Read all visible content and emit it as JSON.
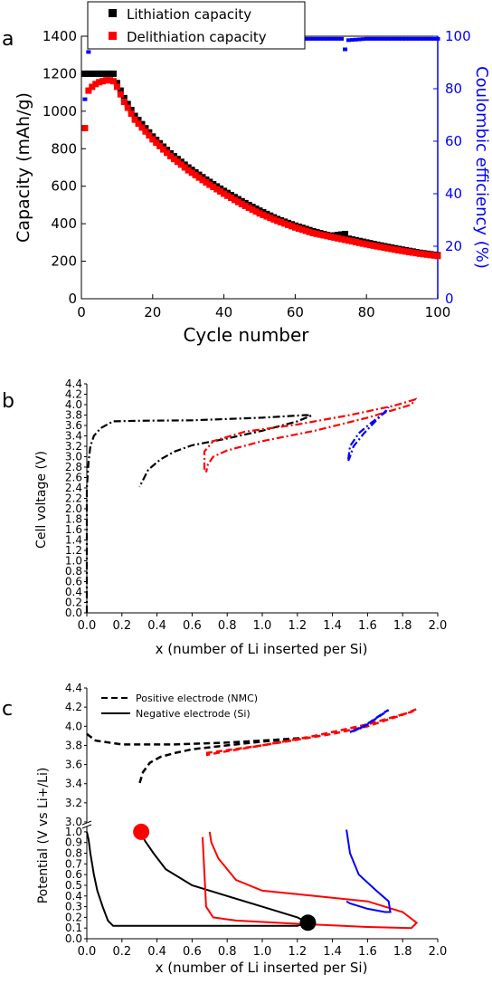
{
  "chart_data": [
    {
      "panel_label": "a",
      "type": "scatter",
      "xlabel": "Cycle number",
      "ylabel": "Capacity (mAh/g)",
      "y2label": "Coulombic efficiency (%)",
      "xlim": [
        0,
        100
      ],
      "ylim": [
        0,
        1400
      ],
      "y2lim": [
        0,
        100
      ],
      "xticks": [
        "0",
        "20",
        "40",
        "60",
        "80",
        "100"
      ],
      "yticks": [
        "0",
        "200",
        "400",
        "600",
        "800",
        "1000",
        "1200",
        "1400"
      ],
      "y2ticks": [
        "0",
        "20",
        "40",
        "60",
        "80",
        "100"
      ],
      "legend": [
        "Lithiation capacity",
        "Delithiation capacity"
      ],
      "legend_position": "top",
      "colors": {
        "lithiation": "#000000",
        "delithiation": "#ff0000",
        "efficiency": "#0000ff"
      },
      "series": [
        {
          "name": "Lithiation capacity",
          "axis": "left",
          "x": [
            1,
            2,
            3,
            4,
            5,
            6,
            7,
            8,
            9,
            10,
            12,
            15,
            20,
            25,
            30,
            35,
            40,
            45,
            50,
            55,
            60,
            65,
            70,
            74,
            75,
            80,
            85,
            90,
            95,
            100
          ],
          "y": [
            1200,
            1200,
            1200,
            1200,
            1200,
            1200,
            1200,
            1200,
            1200,
            1150,
            1070,
            975,
            865,
            775,
            700,
            635,
            575,
            520,
            470,
            425,
            390,
            360,
            335,
            345,
            320,
            300,
            280,
            262,
            245,
            232
          ]
        },
        {
          "name": "Delithiation capacity",
          "axis": "left",
          "x": [
            1,
            2,
            3,
            4,
            5,
            6,
            7,
            8,
            9,
            10,
            12,
            15,
            20,
            25,
            30,
            35,
            40,
            45,
            50,
            55,
            60,
            65,
            70,
            75,
            80,
            85,
            90,
            95,
            100
          ],
          "y": [
            910,
            1110,
            1130,
            1145,
            1155,
            1160,
            1165,
            1165,
            1160,
            1130,
            1050,
            955,
            850,
            760,
            685,
            620,
            560,
            505,
            455,
            415,
            380,
            350,
            330,
            310,
            290,
            272,
            255,
            240,
            228
          ]
        },
        {
          "name": "Coulombic efficiency",
          "axis": "right",
          "x": [
            1,
            2,
            3,
            4,
            5,
            6,
            8,
            10,
            15,
            20,
            30,
            40,
            50,
            60,
            70,
            73,
            74,
            75,
            80,
            90,
            100
          ],
          "y": [
            76,
            94,
            96,
            96.8,
            97.3,
            97.6,
            98,
            98.2,
            98.5,
            98.7,
            98.9,
            99,
            99,
            99,
            99,
            99,
            95,
            98.5,
            99,
            99,
            99
          ]
        }
      ]
    },
    {
      "panel_label": "b",
      "type": "line",
      "xlabel": "x (number of Li inserted per Si)",
      "ylabel": "Cell voltage (V)",
      "xlim": [
        0,
        2.0
      ],
      "ylim": [
        0,
        4.4
      ],
      "xticks": [
        "0.0",
        "0.2",
        "0.4",
        "0.6",
        "0.8",
        "1.0",
        "1.2",
        "1.4",
        "1.6",
        "1.8",
        "2.0"
      ],
      "yticks": [
        "0.0",
        "0.2",
        "0.4",
        "0.6",
        "0.8",
        "1.0",
        "1.2",
        "1.4",
        "1.6",
        "1.8",
        "2.0",
        "2.2",
        "2.4",
        "2.6",
        "2.8",
        "3.0",
        "3.2",
        "3.4",
        "3.6",
        "3.8",
        "4.0",
        "4.2",
        "4.4"
      ],
      "series": [
        {
          "color": "#000000",
          "dash": "dashdot",
          "x": [
            0,
            0,
            0.01,
            0.02,
            0.04,
            0.08,
            0.15,
            0.3,
            0.6,
            1.0,
            1.25,
            1.28,
            1.2,
            1.0,
            0.8,
            0.6,
            0.5,
            0.42,
            0.35,
            0.32,
            0.3
          ],
          "y": [
            0,
            2.4,
            2.9,
            3.2,
            3.4,
            3.55,
            3.68,
            3.69,
            3.7,
            3.75,
            3.8,
            3.79,
            3.68,
            3.5,
            3.35,
            3.22,
            3.1,
            2.95,
            2.75,
            2.55,
            2.42
          ]
        },
        {
          "color": "#ff0000",
          "dash": "dashdot",
          "x": [
            0.67,
            0.67,
            0.72,
            0.9,
            1.2,
            1.5,
            1.75,
            1.87,
            1.85,
            1.6,
            1.3,
            1.0,
            0.8,
            0.72,
            0.69,
            0.68
          ],
          "y": [
            2.75,
            3.1,
            3.3,
            3.48,
            3.62,
            3.8,
            3.98,
            4.1,
            4.0,
            3.75,
            3.5,
            3.3,
            3.12,
            3.0,
            2.85,
            2.7
          ]
        },
        {
          "color": "#0000ff",
          "dash": "dashdot",
          "x": [
            1.49,
            1.5,
            1.55,
            1.62,
            1.7,
            1.72,
            1.71,
            1.65,
            1.58,
            1.52,
            1.5,
            1.49
          ],
          "y": [
            2.95,
            3.2,
            3.45,
            3.65,
            3.85,
            3.95,
            3.9,
            3.7,
            3.45,
            3.2,
            3.0,
            2.92
          ]
        }
      ]
    },
    {
      "panel_label": "c",
      "type": "line",
      "xlabel": "x (number of Li inserted per Si)",
      "ylabel": "Potential (V vs Li+/Li)",
      "xlim": [
        0,
        2.0
      ],
      "ylim_upper": [
        3.0,
        4.4
      ],
      "ylim_lower": [
        0,
        1.05
      ],
      "axis_break": true,
      "xticks": [
        "0.0",
        "0.2",
        "0.4",
        "0.6",
        "0.8",
        "1.0",
        "1.2",
        "1.4",
        "1.6",
        "1.8",
        "2.0"
      ],
      "yticks_upper": [
        "3.0",
        "3.2",
        "3.4",
        "3.6",
        "3.8",
        "4.0",
        "4.2",
        "4.4"
      ],
      "yticks_lower": [
        "0.0",
        "0.1",
        "0.2",
        "0.3",
        "0.4",
        "0.5",
        "0.6",
        "0.7",
        "0.8",
        "0.9",
        "1.0"
      ],
      "legend": [
        "Positive electrode (NMC)",
        "Negative electrode (Si)"
      ],
      "legend_position": "top-left",
      "series": [
        {
          "name": "Positive electrode (NMC)",
          "segment": "upper",
          "color": "#000000",
          "dash": "dashed",
          "x": [
            0,
            0.05,
            0.2,
            0.5,
            0.8,
            1.0,
            1.25,
            1.2,
            1.0,
            0.8,
            0.6,
            0.5,
            0.42,
            0.36,
            0.32,
            0.3
          ],
          "y": [
            3.92,
            3.85,
            3.81,
            3.81,
            3.83,
            3.85,
            3.88,
            3.87,
            3.84,
            3.8,
            3.76,
            3.72,
            3.68,
            3.62,
            3.52,
            3.4
          ]
        },
        {
          "segment": "upper",
          "color": "#ff0000",
          "dash": "dashed",
          "x": [
            0.68,
            0.8,
            1.0,
            1.2,
            1.4,
            1.6,
            1.8,
            1.88,
            1.85,
            1.6,
            1.3,
            1.0,
            0.8,
            0.68
          ],
          "y": [
            3.72,
            3.75,
            3.8,
            3.86,
            3.92,
            4.0,
            4.12,
            4.18,
            4.15,
            4.02,
            3.9,
            3.8,
            3.74,
            3.7
          ]
        },
        {
          "segment": "upper",
          "color": "#0000ff",
          "dash": "dashed",
          "x": [
            1.5,
            1.55,
            1.62,
            1.7,
            1.72,
            1.68,
            1.6,
            1.52,
            1.5
          ],
          "y": [
            3.94,
            3.97,
            4.05,
            4.15,
            4.17,
            4.12,
            4.02,
            3.95,
            3.93
          ]
        },
        {
          "name": "Negative electrode (Si)",
          "segment": "lower",
          "color": "#000000",
          "dash": "solid",
          "x": [
            0,
            0.01,
            0.02,
            0.04,
            0.06,
            0.09,
            0.12,
            0.15,
            0.4,
            0.8,
            1.2,
            1.26,
            1.2,
            1.0,
            0.8,
            0.6,
            0.45,
            0.38,
            0.33,
            0.31
          ],
          "y": [
            1.0,
            0.93,
            0.8,
            0.6,
            0.45,
            0.3,
            0.17,
            0.12,
            0.12,
            0.12,
            0.12,
            0.15,
            0.2,
            0.3,
            0.4,
            0.5,
            0.65,
            0.8,
            0.92,
            1.0
          ]
        },
        {
          "segment": "lower",
          "color": "#ff0000",
          "dash": "solid",
          "x": [
            0.66,
            0.68,
            0.72,
            0.85,
            1.2,
            1.6,
            1.85,
            1.88,
            1.8,
            1.6,
            1.3,
            1.0,
            0.85,
            0.75,
            0.71,
            0.7
          ],
          "y": [
            0.95,
            0.3,
            0.2,
            0.17,
            0.14,
            0.11,
            0.1,
            0.15,
            0.25,
            0.35,
            0.4,
            0.45,
            0.55,
            0.75,
            0.9,
            1.0
          ]
        },
        {
          "segment": "lower",
          "color": "#0000ff",
          "dash": "solid",
          "x": [
            1.48,
            1.5,
            1.55,
            1.65,
            1.72,
            1.73,
            1.7,
            1.6,
            1.5,
            1.48
          ],
          "y": [
            1.02,
            0.8,
            0.6,
            0.45,
            0.35,
            0.25,
            0.25,
            0.28,
            0.33,
            0.35
          ]
        }
      ],
      "markers": [
        {
          "x": 0.31,
          "y": 1.0,
          "color": "#ff0000"
        },
        {
          "x": 1.26,
          "y": 0.15,
          "color": "#000000"
        }
      ]
    }
  ]
}
